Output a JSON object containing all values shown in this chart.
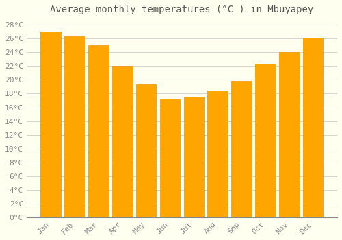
{
  "title": "Average monthly temperatures (°C ) in Mbuyapey",
  "months": [
    "Jan",
    "Feb",
    "Mar",
    "Apr",
    "May",
    "Jun",
    "Jul",
    "Aug",
    "Sep",
    "Oct",
    "Nov",
    "Dec"
  ],
  "values": [
    27.0,
    26.3,
    25.0,
    22.0,
    19.3,
    17.2,
    17.5,
    18.4,
    19.8,
    22.3,
    24.0,
    26.1
  ],
  "bar_color": "#FFA500",
  "bar_edge_color": "#E8940A",
  "ylim": [
    0,
    29
  ],
  "ytick_step": 2,
  "background_color": "#fffff0",
  "grid_color": "#cccccc",
  "title_fontsize": 10,
  "tick_fontsize": 8,
  "tick_color": "#888888",
  "title_color": "#555555"
}
